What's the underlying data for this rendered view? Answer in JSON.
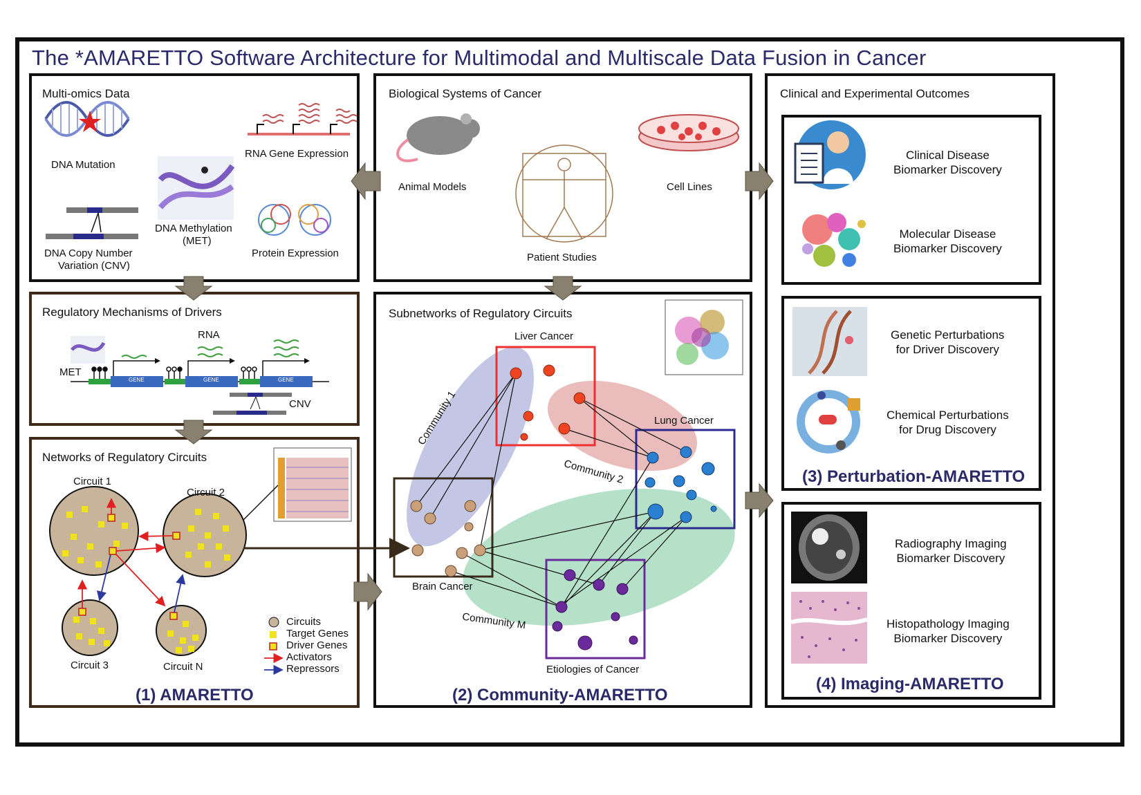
{
  "title": "The *AMARETTO Software Architecture for Multimodal and Multiscale Data Fusion in Cancer",
  "multiomics": {
    "title": "Multi-omics Data",
    "dna_mutation": "DNA Mutation",
    "rna_expression": "RNA Gene Expression",
    "dna_methylation_1": "DNA Methylation",
    "dna_methylation_2": "(MET)",
    "cnv_1": "DNA Copy Number",
    "cnv_2": "Variation (CNV)",
    "protein": "Protein Expression"
  },
  "biosystems": {
    "title": "Biological Systems of Cancer",
    "animal": "Animal Models",
    "patient": "Patient Studies",
    "cells": "Cell Lines"
  },
  "outcomes": {
    "title": "Clinical and Experimental Outcomes",
    "clinical_1": "Clinical Disease",
    "clinical_2": "Biomarker Discovery",
    "molecular_1": "Molecular Disease",
    "molecular_2": "Biomarker Discovery",
    "genetic_1": "Genetic Perturbations",
    "genetic_2": "for Driver Discovery",
    "chemical_1": "Chemical Perturbations",
    "chemical_2": "for Drug Discovery",
    "perturbation_label": "(3) Perturbation-AMARETTO",
    "radiography_1": "Radiography Imaging",
    "radiography_2": "Biomarker Discovery",
    "histo_1": "Histopathology Imaging",
    "histo_2": "Biomarker Discovery",
    "imaging_label": "(4) Imaging-AMARETTO"
  },
  "regulatory": {
    "title": "Regulatory Mechanisms of Drivers",
    "rna": "RNA",
    "met": "MET",
    "cnv": "CNV",
    "gene": "GENE"
  },
  "networks": {
    "title": "Networks of Regulatory Circuits",
    "circuit1": "Circuit 1",
    "circuit2": "Circuit 2",
    "circuit3": "Circuit 3",
    "circuitN": "Circuit N",
    "legend": {
      "circuits": "Circuits",
      "target": "Target Genes",
      "driver": "Driver Genes",
      "activators": "Activators",
      "repressors": "Repressors"
    },
    "label": "(1) AMARETTO"
  },
  "subnetworks": {
    "title": "Subnetworks of Regulatory Circuits",
    "liver": "Liver Cancer",
    "lung": "Lung Cancer",
    "brain": "Brain Cancer",
    "etiologies": "Etiologies of Cancer",
    "community1": "Community 1",
    "community2": "Community 2",
    "communityM": "Community M",
    "label": "(2) Community-AMARETTO"
  },
  "colors": {
    "title": "#2a2a6a",
    "liver": "#ee4422",
    "lung": "#2b7fd0",
    "brain": "#c9a07a",
    "etiologies": "#6a2a9a",
    "arrow": "#8a8070",
    "activator": "#e02020",
    "repressor": "#2a3aa0"
  },
  "icons": [
    "dna-icon",
    "mouse-icon",
    "vitruvian-icon",
    "petri-dish-icon",
    "doctor-icon",
    "tsne-icon",
    "dna-scissors-icon",
    "drug-wheel-icon",
    "mri-icon",
    "histology-icon"
  ]
}
